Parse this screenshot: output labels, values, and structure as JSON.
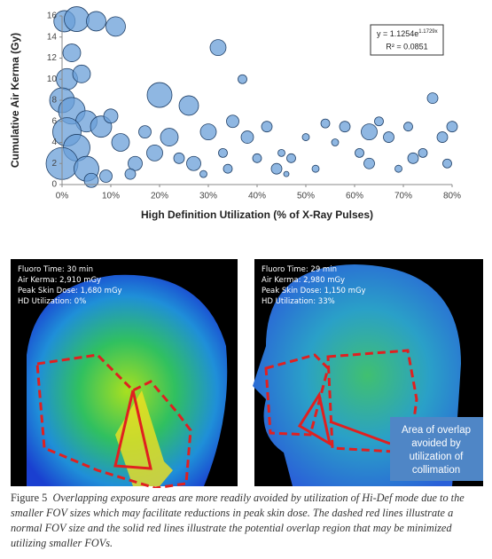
{
  "chart_data": {
    "type": "scatter",
    "y_label": "Cumulative Air Kerma (Gy)",
    "x_label": "High Definition Utilization (% of X-Ray Pulses)",
    "annotation": {
      "equation": "y = 1.1254e",
      "equation_exponent": "1.1729x",
      "r_squared": "R² = 0.0851"
    },
    "color": "#6a9fd8",
    "xlim": [
      0,
      80
    ],
    "ylim": [
      0,
      16
    ],
    "xticks": [
      {
        "value": 0,
        "label": "0%"
      },
      {
        "value": 10,
        "label": "10%"
      },
      {
        "value": 20,
        "label": "20%"
      },
      {
        "value": 30,
        "label": "30%"
      },
      {
        "value": 40,
        "label": "40%"
      },
      {
        "value": 50,
        "label": "50%"
      },
      {
        "value": 60,
        "label": "60%"
      },
      {
        "value": 70,
        "label": "70%"
      },
      {
        "value": 80,
        "label": "80%"
      }
    ],
    "yticks": [
      0,
      2,
      4,
      6,
      8,
      10,
      12,
      14,
      16
    ],
    "x": [
      0.5,
      3,
      7,
      11,
      2,
      1,
      4,
      0,
      2,
      5,
      8,
      1,
      3,
      0,
      5,
      10,
      12,
      15,
      17,
      20,
      22,
      19,
      24,
      26,
      27,
      30,
      32,
      35,
      37,
      38,
      40,
      42,
      44,
      47,
      50,
      54,
      56,
      58,
      61,
      63,
      63,
      67,
      71,
      72,
      74,
      76,
      78,
      80,
      79,
      69,
      52,
      46,
      34,
      29,
      14,
      9,
      6,
      33,
      45,
      65
    ],
    "values": [
      15.5,
      15.7,
      15.5,
      15,
      12.5,
      10,
      10.5,
      8,
      7,
      6,
      5.5,
      5,
      3.5,
      2,
      1.5,
      6.5,
      4,
      2,
      5,
      8.5,
      4.5,
      3,
      2.5,
      7.5,
      2,
      5,
      13,
      6,
      10,
      4.5,
      2.5,
      5.5,
      1.5,
      2.5,
      4.5,
      5.8,
      4,
      5.5,
      3,
      5,
      2,
      4.5,
      5.5,
      2.5,
      3,
      8.2,
      4.5,
      5.5,
      2,
      1.5,
      1.5,
      1,
      1.5,
      1,
      1,
      0.8,
      0.4,
      3,
      3,
      6
    ],
    "sizes": [
      144,
      196,
      121,
      121,
      100,
      144,
      100,
      196,
      225,
      144,
      144,
      256,
      225,
      324,
      196,
      64,
      100,
      64,
      49,
      196,
      100,
      81,
      36,
      121,
      64,
      81,
      81,
      49,
      25,
      49,
      25,
      36,
      36,
      25,
      16,
      25,
      16,
      36,
      25,
      81,
      36,
      36,
      25,
      36,
      25,
      36,
      36,
      36,
      25,
      16,
      16,
      9,
      25,
      16,
      36,
      49,
      64,
      25,
      16,
      25
    ]
  },
  "figure": {
    "panels": [
      {
        "lines": [
          "Fluoro Time: 30 min",
          "Air Kerma: 2,910 mGy",
          "Peak Skin Dose: 1,680 mGy",
          "HD Utilization: 0%"
        ]
      },
      {
        "lines": [
          "Fluoro Time: 29 min",
          "Air Kerma: 2,980 mGy",
          "Peak Skin Dose: 1,150 mGy",
          "HD Utilization: 33%"
        ]
      }
    ],
    "callout": [
      "Area of overlap",
      "avoided by",
      "utilization of",
      "collimation"
    ],
    "caption": {
      "label": "Figure 5",
      "text": "Overlapping exposure areas are more readily avoided by utilization of Hi-Def mode due to the smaller FOV sizes which may facilitate reductions in peak skin dose. The dashed red lines illustrate a normal FOV size and the solid red lines illustrate the potential overlap region that may be minimized utilizing smaller FOVs."
    }
  }
}
